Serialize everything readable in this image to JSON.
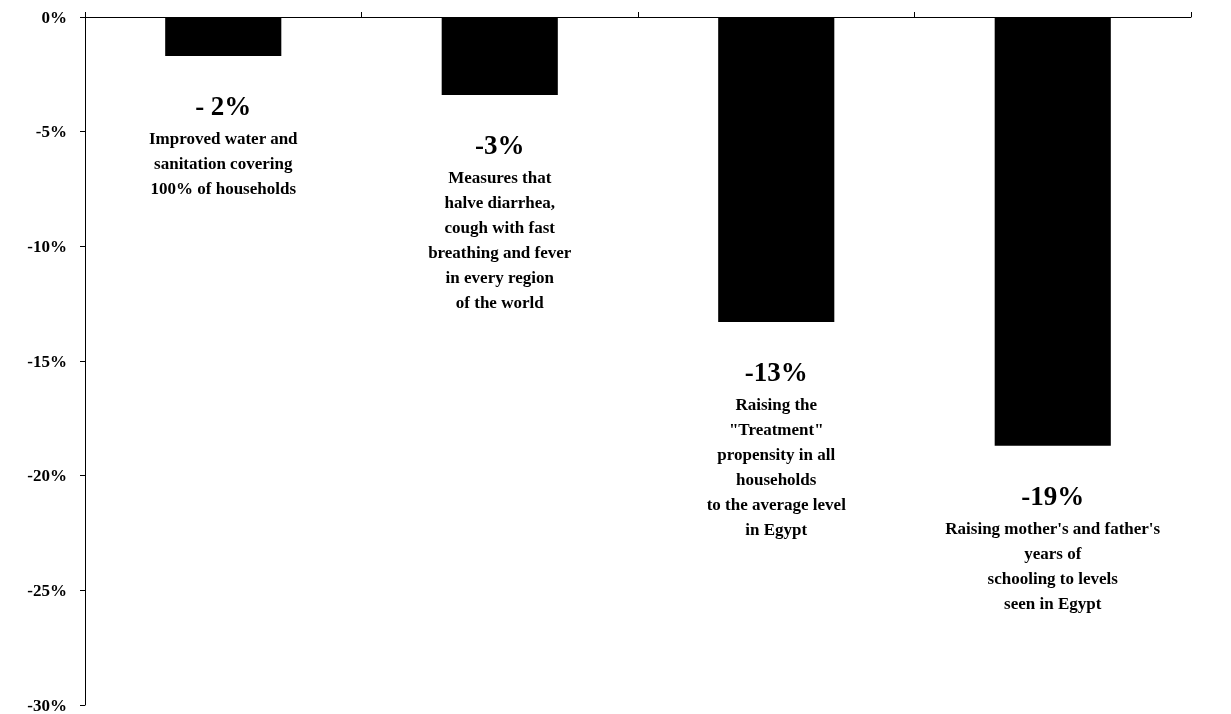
{
  "chart_data": {
    "type": "bar",
    "categories": [
      "Improved water and\nsanitation covering\n100% of households",
      "Measures that\nhalve diarrhea,\ncough with fast\nbreathing and fever\nin every region\nof the world",
      "Raising the\n\"Treatment\"\npropensity in all\nhouseholds\nto the average level\nin Egypt",
      "Raising mother's and father's\nyears of\nschooling to levels\nseen in Egypt"
    ],
    "values": [
      -1.7,
      -3.4,
      -13.3,
      -18.7
    ],
    "value_labels": [
      "- 2%",
      "-3%",
      "-13%",
      "-19%"
    ],
    "color": "#000000",
    "ylim": [
      -30,
      0
    ],
    "yticks": [
      {
        "value": 0,
        "label": "0%"
      },
      {
        "value": -5,
        "label": "-5%"
      },
      {
        "value": -10,
        "label": "-10%"
      },
      {
        "value": -15,
        "label": "-15%"
      },
      {
        "value": -20,
        "label": "-20%"
      },
      {
        "value": -25,
        "label": "-25%"
      },
      {
        "value": -30,
        "label": "-30%"
      }
    ],
    "grid": false
  }
}
